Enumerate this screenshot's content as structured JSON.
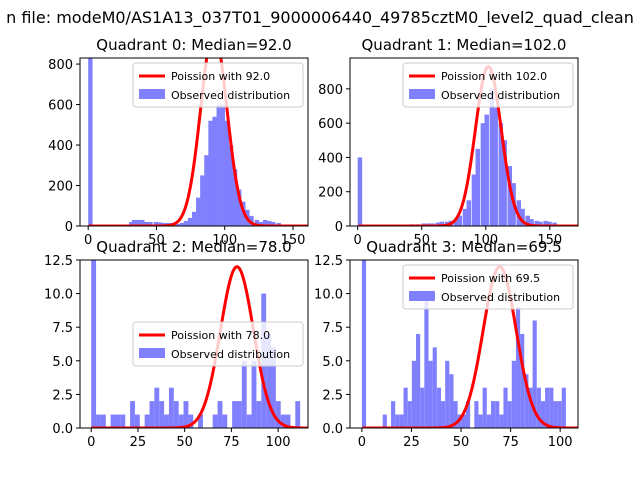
{
  "figure": {
    "suptitle": "n file: modeM0/AS1A13_037T01_9000006440_49785cztM0_level2_quad_clean"
  },
  "colors": {
    "bars": "#8080ff",
    "poisson": "#ff0000",
    "axes": "#000000",
    "background": "#ffffff"
  },
  "chart_data": [
    {
      "type": "bar",
      "title": "Quadrant 0: Median=92.0",
      "median": 92.0,
      "xlim": [
        -6,
        161
      ],
      "ylim": [
        0,
        830
      ],
      "xticks": [
        0,
        50,
        100,
        150
      ],
      "yticks": [
        0,
        200,
        400,
        600,
        800
      ],
      "ytick_labels": [
        "0",
        "200",
        "400",
        "600",
        "800"
      ],
      "bin_width": 3.2,
      "bins": [
        [
          0,
          830
        ],
        [
          30,
          20
        ],
        [
          32,
          30
        ],
        [
          35,
          30
        ],
        [
          38,
          30
        ],
        [
          41,
          20
        ],
        [
          44,
          20
        ],
        [
          48,
          20
        ],
        [
          51,
          18
        ],
        [
          54,
          15
        ],
        [
          57,
          15
        ],
        [
          60,
          15
        ],
        [
          64,
          10
        ],
        [
          67,
          15
        ],
        [
          70,
          25
        ],
        [
          73,
          40
        ],
        [
          76,
          70
        ],
        [
          79,
          140
        ],
        [
          82,
          250
        ],
        [
          85,
          350
        ],
        [
          88,
          520
        ],
        [
          91,
          540
        ],
        [
          94,
          600
        ],
        [
          97,
          600
        ],
        [
          100,
          520
        ],
        [
          103,
          400
        ],
        [
          106,
          280
        ],
        [
          109,
          180
        ],
        [
          112,
          120
        ],
        [
          115,
          80
        ],
        [
          118,
          50
        ],
        [
          122,
          30
        ],
        [
          125,
          20
        ],
        [
          128,
          30
        ],
        [
          131,
          25
        ],
        [
          134,
          20
        ],
        [
          138,
          15
        ]
      ],
      "poisson_peak": 960,
      "legend": [
        "Poission with 92.0",
        "Observed distribution"
      ],
      "legend_position": "upper-right"
    },
    {
      "type": "bar",
      "title": "Quadrant 1: Median=102.0",
      "median": 102.0,
      "xlim": [
        -6,
        172
      ],
      "ylim": [
        0,
        980
      ],
      "xticks": [
        0,
        50,
        100,
        150
      ],
      "yticks": [
        0,
        200,
        400,
        600,
        800
      ],
      "ytick_labels": [
        "0",
        "200",
        "400",
        "600",
        "800"
      ],
      "bin_width": 3.5,
      "bins": [
        [
          0,
          400
        ],
        [
          40,
          10
        ],
        [
          45,
          10
        ],
        [
          50,
          15
        ],
        [
          54,
          15
        ],
        [
          57,
          15
        ],
        [
          61,
          20
        ],
        [
          64,
          25
        ],
        [
          68,
          25
        ],
        [
          71,
          30
        ],
        [
          75,
          40
        ],
        [
          78,
          60
        ],
        [
          82,
          100
        ],
        [
          85,
          150
        ],
        [
          89,
          300
        ],
        [
          92,
          450
        ],
        [
          96,
          600
        ],
        [
          99,
          650
        ],
        [
          103,
          800
        ],
        [
          106,
          690
        ],
        [
          110,
          600
        ],
        [
          113,
          500
        ],
        [
          117,
          350
        ],
        [
          120,
          250
        ],
        [
          124,
          150
        ],
        [
          127,
          100
        ],
        [
          131,
          60
        ],
        [
          134,
          40
        ],
        [
          138,
          30
        ],
        [
          141,
          25
        ],
        [
          145,
          30
        ],
        [
          148,
          25
        ],
        [
          152,
          20
        ]
      ],
      "poisson_peak": 930,
      "legend": [
        "Poission with 102.0",
        "Observed distribution"
      ],
      "legend_position": "upper-right"
    },
    {
      "type": "bar",
      "title": "Quadrant 2: Median=78.0",
      "median": 78.0,
      "xlim": [
        -6,
        116
      ],
      "ylim": [
        0,
        12.5
      ],
      "xticks": [
        0,
        25,
        50,
        75,
        100
      ],
      "yticks": [
        0,
        2.5,
        5.0,
        7.5,
        10.0,
        12.5
      ],
      "ytick_labels": [
        "0.0",
        "2.5",
        "5.0",
        "7.5",
        "10.0",
        "12.5"
      ],
      "bin_width": 2.6,
      "bins": [
        [
          0,
          13
        ],
        [
          2.6,
          1
        ],
        [
          5.2,
          1
        ],
        [
          10.4,
          1
        ],
        [
          13,
          1
        ],
        [
          15.6,
          1
        ],
        [
          20.8,
          2
        ],
        [
          23.4,
          1
        ],
        [
          28.6,
          1
        ],
        [
          31.2,
          2
        ],
        [
          33.8,
          3
        ],
        [
          36.4,
          2
        ],
        [
          39,
          1
        ],
        [
          41.6,
          3
        ],
        [
          44.2,
          2
        ],
        [
          46.8,
          1
        ],
        [
          49.4,
          2
        ],
        [
          52,
          1
        ],
        [
          57.2,
          1
        ],
        [
          65,
          1
        ],
        [
          67.6,
          2
        ],
        [
          70.2,
          1
        ],
        [
          75.4,
          2
        ],
        [
          78,
          2
        ],
        [
          80.6,
          5
        ],
        [
          83.2,
          1
        ],
        [
          85.8,
          5
        ],
        [
          88.4,
          2
        ],
        [
          91,
          10
        ],
        [
          93.6,
          7
        ],
        [
          96.2,
          6
        ],
        [
          98.8,
          2
        ],
        [
          101.4,
          1
        ],
        [
          104,
          1
        ],
        [
          109.2,
          2
        ]
      ],
      "poisson_peak": 12.0,
      "legend": [
        "Poission with 78.0",
        "Observed distribution"
      ],
      "legend_position": "center-right"
    },
    {
      "type": "bar",
      "title": "Quadrant 3: Median=69.5",
      "median": 69.5,
      "xlim": [
        -6,
        109
      ],
      "ylim": [
        0,
        12.5
      ],
      "xticks": [
        0,
        25,
        50,
        75,
        100
      ],
      "yticks": [
        0,
        2.5,
        5.0,
        7.5,
        10.0,
        12.5
      ],
      "ytick_labels": [
        "0.0",
        "2.5",
        "5.0",
        "7.5",
        "10.0",
        "12.5"
      ],
      "bin_width": 2.1,
      "bins": [
        [
          0,
          13
        ],
        [
          10.5,
          1
        ],
        [
          14.7,
          2
        ],
        [
          16.8,
          1
        ],
        [
          18.9,
          1
        ],
        [
          21,
          3
        ],
        [
          23.1,
          2
        ],
        [
          25.2,
          5
        ],
        [
          27.3,
          7
        ],
        [
          29.4,
          3
        ],
        [
          31.5,
          10
        ],
        [
          33.6,
          5
        ],
        [
          35.7,
          6
        ],
        [
          37.8,
          3
        ],
        [
          39.9,
          2
        ],
        [
          42,
          5
        ],
        [
          44.1,
          4
        ],
        [
          46.2,
          2
        ],
        [
          48.3,
          1
        ],
        [
          50.4,
          1
        ],
        [
          52.5,
          2
        ],
        [
          56.7,
          2
        ],
        [
          58.8,
          1
        ],
        [
          60.9,
          3
        ],
        [
          63,
          1
        ],
        [
          65.1,
          2
        ],
        [
          67.2,
          2
        ],
        [
          69.3,
          1
        ],
        [
          71.4,
          3
        ],
        [
          73.5,
          2
        ],
        [
          75.6,
          5
        ],
        [
          77.7,
          9
        ],
        [
          79.8,
          7
        ],
        [
          81.9,
          4
        ],
        [
          84,
          3
        ],
        [
          86.1,
          8
        ],
        [
          88.2,
          3
        ],
        [
          90.3,
          2
        ],
        [
          92.4,
          3
        ],
        [
          94.5,
          3
        ],
        [
          96.6,
          2
        ],
        [
          98.7,
          2
        ],
        [
          100.8,
          3
        ]
      ],
      "poisson_peak": 12.0,
      "legend": [
        "Poission with 69.5",
        "Observed distribution"
      ],
      "legend_position": "upper-right"
    }
  ]
}
